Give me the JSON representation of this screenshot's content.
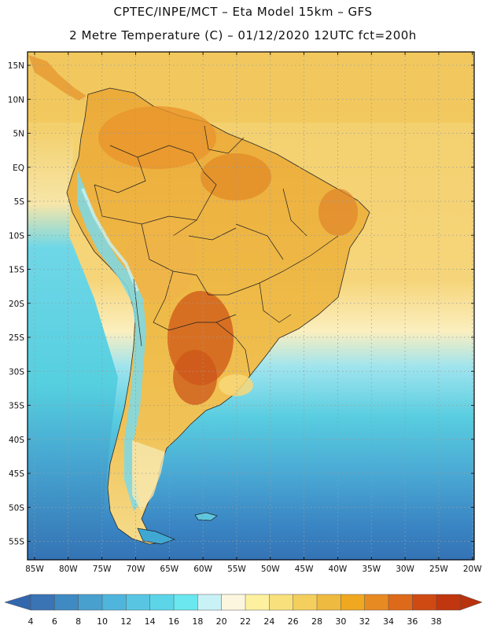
{
  "header": {
    "title_line1": "CPTEC/INPE/MCT –   Eta Model 15km – GFS",
    "title_line2": "2 Metre Temperature (C) – 01/12/2020 12UTC fct=200h"
  },
  "map": {
    "lat_labels": [
      "15N",
      "10N",
      "5N",
      "EQ",
      "5S",
      "10S",
      "15S",
      "20S",
      "25S",
      "30S",
      "35S",
      "40S",
      "45S",
      "50S",
      "55S"
    ],
    "lon_labels": [
      "85W",
      "80W",
      "75W",
      "70W",
      "65W",
      "60W",
      "55W",
      "50W",
      "45W",
      "40W",
      "35W",
      "30W",
      "25W",
      "20W"
    ],
    "lat_values": [
      15,
      10,
      5,
      0,
      -5,
      -10,
      -15,
      -20,
      -25,
      -30,
      -35,
      -40,
      -45,
      -50,
      -55
    ],
    "lon_values": [
      -85,
      -80,
      -75,
      -70,
      -65,
      -60,
      -55,
      -50,
      -45,
      -40,
      -35,
      -30,
      -25,
      -20
    ],
    "colors": {
      "land_hot": "#e89a2c",
      "land_warm": "#f1bd45",
      "ocean_tropical": "#f3d77c",
      "ocean_mid": "#55cfdf",
      "ocean_cold": "#3a86c4",
      "frame": "#000000",
      "grid": "#9a9a9a"
    }
  },
  "colorbar": {
    "ticks": [
      "4",
      "6",
      "8",
      "10",
      "12",
      "14",
      "16",
      "18",
      "20",
      "22",
      "24",
      "26",
      "28",
      "30",
      "32",
      "34",
      "36",
      "38"
    ],
    "colors": [
      "#3a74b5",
      "#3f8ac2",
      "#48a0cf",
      "#4fb5dc",
      "#58c6e3",
      "#5dd5e9",
      "#6ae7ef",
      "#c9f2f6",
      "#fdf6de",
      "#fdf1a0",
      "#f8e07c",
      "#f4cf5e",
      "#eeba40",
      "#f0a821",
      "#e88a22",
      "#dd6a1a",
      "#cf4a13",
      "#c0360e"
    ],
    "left_arrow_color": "#3266ad",
    "right_arrow_color": "#b8320d"
  }
}
